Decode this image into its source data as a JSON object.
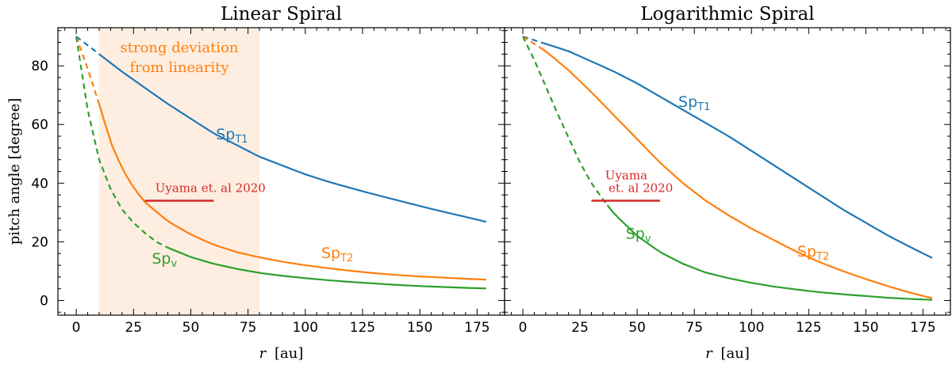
{
  "chart_data": [
    {
      "type": "line",
      "title": "Linear Spiral",
      "xlabel_var": "r",
      "xlabel_unit": "[au]",
      "ylabel": "pitch angle [degree]",
      "xlim": [
        -8,
        187
      ],
      "ylim": [
        -5,
        93
      ],
      "xticks": [
        0,
        25,
        50,
        75,
        100,
        125,
        150,
        175
      ],
      "yticks": [
        0,
        20,
        40,
        60,
        80
      ],
      "shaded_region": {
        "x": [
          10,
          80
        ],
        "color": "#fdeee1",
        "label": [
          "strong deviation",
          "from linearity"
        ],
        "label_color": "#ff7f0e"
      },
      "series": [
        {
          "name": "SpT1",
          "label_main": "Sp",
          "label_sub": "T1",
          "color": "#1f77b4",
          "dashed_x": [
            0,
            10
          ],
          "solid_x": [
            10,
            179
          ],
          "x": [
            0,
            10,
            20,
            30,
            40,
            50,
            60,
            70,
            80,
            90,
            100,
            110,
            120,
            130,
            140,
            150,
            160,
            170,
            179
          ],
          "values": [
            90,
            84,
            78,
            72.5,
            67,
            62,
            57,
            53,
            49,
            46,
            43,
            40.5,
            38.3,
            36.2,
            34.2,
            32.2,
            30.3,
            28.5,
            26.8
          ]
        },
        {
          "name": "SpT2",
          "label_main": "Sp",
          "label_sub": "T2",
          "color": "#ff7f0e",
          "dashed_x": [
            0,
            10
          ],
          "solid_x": [
            10,
            179
          ],
          "x": [
            0,
            5,
            10,
            15,
            20,
            25,
            30,
            40,
            50,
            60,
            70,
            80,
            90,
            100,
            110,
            120,
            130,
            140,
            150,
            160,
            170,
            179
          ],
          "values": [
            90,
            79,
            67,
            54,
            45,
            38.5,
            33.5,
            27,
            22.5,
            19,
            16.5,
            14.7,
            13.2,
            12,
            11,
            10.1,
            9.3,
            8.7,
            8.2,
            7.8,
            7.4,
            7.1
          ]
        },
        {
          "name": "Spv",
          "label_main": "Sp",
          "label_sub": "v",
          "color": "#2ca02c",
          "dashed_x": [
            0,
            40
          ],
          "solid_x": [
            40,
            179
          ],
          "x": [
            0,
            5,
            10,
            15,
            20,
            25,
            30,
            35,
            40,
            50,
            60,
            70,
            80,
            90,
            100,
            110,
            120,
            130,
            140,
            150,
            160,
            170,
            179
          ],
          "values": [
            90,
            65,
            48,
            38,
            31,
            26.5,
            23,
            20,
            18,
            14.8,
            12.5,
            10.8,
            9.4,
            8.4,
            7.6,
            6.9,
            6.3,
            5.8,
            5.3,
            4.9,
            4.6,
            4.3,
            4.1
          ]
        }
      ],
      "reference": {
        "label": "Uyama et. al 2020",
        "x": [
          30,
          60
        ],
        "y": 34,
        "color": "#d62728"
      }
    },
    {
      "type": "line",
      "title": "Logarithmic Spiral",
      "xlabel_var": "r",
      "xlabel_unit": "[au]",
      "ylabel": "",
      "xlim": [
        -8,
        187
      ],
      "ylim": [
        -5,
        93
      ],
      "xticks": [
        0,
        25,
        50,
        75,
        100,
        125,
        150,
        175
      ],
      "yticks": [
        0,
        20,
        40,
        60,
        80
      ],
      "series": [
        {
          "name": "SpT1",
          "label_main": "Sp",
          "label_sub": "T1",
          "color": "#1f77b4",
          "dashed_x": [
            0,
            9
          ],
          "solid_x": [
            9,
            179
          ],
          "x": [
            0,
            10,
            20,
            30,
            40,
            50,
            60,
            70,
            80,
            90,
            100,
            110,
            120,
            130,
            140,
            150,
            160,
            170,
            179
          ],
          "values": [
            90,
            87.5,
            85,
            81.5,
            78,
            74,
            69.5,
            65,
            60.5,
            56,
            51,
            46,
            41,
            36,
            31,
            26.5,
            22,
            18,
            14.5
          ]
        },
        {
          "name": "SpT2",
          "label_main": "Sp",
          "label_sub": "T2",
          "color": "#ff7f0e",
          "dashed_x": [
            0,
            9
          ],
          "solid_x": [
            9,
            179
          ],
          "x": [
            0,
            10,
            20,
            30,
            40,
            50,
            60,
            70,
            80,
            90,
            100,
            110,
            120,
            130,
            140,
            150,
            160,
            170,
            179
          ],
          "values": [
            90,
            85,
            78.5,
            71,
            63,
            55,
            47,
            40,
            34,
            29,
            24.5,
            20.5,
            16.5,
            13,
            10,
            7.3,
            4.8,
            2.5,
            0.8
          ]
        },
        {
          "name": "Spv",
          "label_main": "Sp",
          "label_sub": "v",
          "color": "#2ca02c",
          "dashed_x": [
            0,
            37
          ],
          "solid_x": [
            37,
            179
          ],
          "x": [
            0,
            5,
            10,
            15,
            20,
            25,
            30,
            35,
            40,
            50,
            60,
            70,
            80,
            90,
            100,
            110,
            120,
            130,
            140,
            150,
            160,
            170,
            179
          ],
          "values": [
            90,
            82,
            73,
            64,
            55.5,
            47,
            40,
            34.5,
            29.5,
            22,
            16.5,
            12.5,
            9.5,
            7.6,
            6,
            4.7,
            3.7,
            2.8,
            2.1,
            1.5,
            0.9,
            0.5,
            0.2
          ]
        }
      ],
      "reference": {
        "label_lines": [
          "Uyama",
          "et. al 2020"
        ],
        "x": [
          30,
          60
        ],
        "y": 34,
        "color": "#d62728"
      }
    }
  ]
}
